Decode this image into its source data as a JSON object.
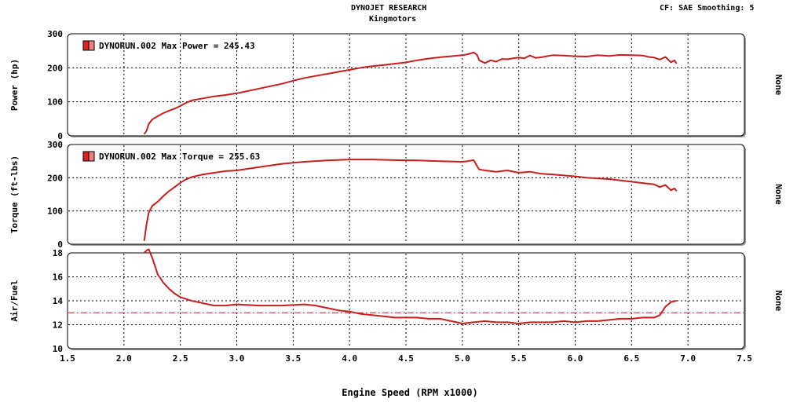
{
  "header": {
    "title": "DYNOJET RESEARCH",
    "subtitle": "Kingmotors",
    "info": "CF: SAE  Smoothing: 5"
  },
  "chart_data": {
    "type": "line",
    "xlabel": "Engine Speed (RPM x1000)",
    "xlim": [
      1.5,
      7.5
    ],
    "xticks": [
      "1.5",
      "2.0",
      "2.5",
      "3.0",
      "3.5",
      "4.0",
      "4.5",
      "5.0",
      "5.5",
      "6.0",
      "6.5",
      "7.0",
      "7.5"
    ],
    "grid": true,
    "line_color": "#c81e1e",
    "panels": [
      {
        "ylabel": "Power (hp)",
        "ylim": [
          0,
          300
        ],
        "yticks": [
          "0",
          "100",
          "200",
          "300"
        ],
        "side_label": "None",
        "legend": "DYNORUN.002 Max Power = 245.43",
        "x": [
          2.18,
          2.2,
          2.22,
          2.25,
          2.3,
          2.35,
          2.4,
          2.45,
          2.5,
          2.55,
          2.6,
          2.7,
          2.8,
          2.9,
          3.0,
          3.1,
          3.2,
          3.3,
          3.4,
          3.5,
          3.6,
          3.7,
          3.8,
          3.9,
          4.0,
          4.1,
          4.2,
          4.3,
          4.4,
          4.5,
          4.6,
          4.7,
          4.8,
          4.9,
          5.0,
          5.05,
          5.1,
          5.13,
          5.15,
          5.2,
          5.25,
          5.3,
          5.35,
          5.4,
          5.45,
          5.5,
          5.55,
          5.6,
          5.65,
          5.7,
          5.8,
          5.9,
          6.0,
          6.1,
          6.2,
          6.3,
          6.4,
          6.5,
          6.6,
          6.65,
          6.7,
          6.75,
          6.8,
          6.85,
          6.88,
          6.9
        ],
        "y": [
          5,
          15,
          35,
          48,
          58,
          67,
          74,
          80,
          88,
          97,
          104,
          110,
          116,
          120,
          125,
          132,
          139,
          146,
          153,
          162,
          170,
          176,
          182,
          188,
          194,
          200,
          205,
          208,
          212,
          216,
          222,
          227,
          231,
          234,
          237,
          240,
          245,
          238,
          222,
          214,
          222,
          218,
          226,
          225,
          228,
          230,
          228,
          236,
          229,
          231,
          237,
          236,
          234,
          233,
          237,
          235,
          238,
          237,
          236,
          232,
          230,
          224,
          232,
          216,
          222,
          212
        ]
      },
      {
        "ylabel": "Torque (ft-lbs)",
        "ylim": [
          0,
          300
        ],
        "yticks": [
          "0",
          "100",
          "200",
          "300"
        ],
        "side_label": "None",
        "legend": "DYNORUN.002 Max Torque = 255.63",
        "x": [
          2.18,
          2.2,
          2.22,
          2.25,
          2.3,
          2.35,
          2.4,
          2.45,
          2.5,
          2.55,
          2.6,
          2.7,
          2.8,
          2.9,
          3.0,
          3.2,
          3.4,
          3.6,
          3.8,
          4.0,
          4.2,
          4.4,
          4.6,
          4.8,
          5.0,
          5.05,
          5.1,
          5.13,
          5.15,
          5.2,
          5.3,
          5.4,
          5.5,
          5.6,
          5.7,
          5.8,
          5.9,
          6.0,
          6.1,
          6.2,
          6.3,
          6.4,
          6.5,
          6.6,
          6.7,
          6.75,
          6.8,
          6.85,
          6.88,
          6.9
        ],
        "y": [
          10,
          60,
          95,
          115,
          128,
          145,
          160,
          172,
          185,
          195,
          202,
          210,
          215,
          220,
          222,
          232,
          242,
          248,
          252,
          255,
          255,
          253,
          252,
          250,
          248,
          250,
          253,
          235,
          225,
          222,
          218,
          222,
          215,
          218,
          212,
          210,
          207,
          204,
          200,
          198,
          196,
          192,
          188,
          184,
          180,
          172,
          178,
          162,
          168,
          160
        ]
      },
      {
        "ylabel": "Air/Fuel",
        "ylim": [
          10,
          18
        ],
        "yticks": [
          "10",
          "12",
          "14",
          "16",
          "18"
        ],
        "side_label": "None",
        "reference_line": 13.0,
        "x": [
          2.18,
          2.2,
          2.22,
          2.25,
          2.3,
          2.35,
          2.4,
          2.45,
          2.5,
          2.6,
          2.7,
          2.8,
          2.9,
          3.0,
          3.2,
          3.4,
          3.6,
          3.7,
          3.8,
          3.9,
          4.0,
          4.1,
          4.2,
          4.3,
          4.4,
          4.5,
          4.6,
          4.7,
          4.8,
          4.9,
          5.0,
          5.1,
          5.2,
          5.3,
          5.4,
          5.5,
          5.6,
          5.7,
          5.8,
          5.9,
          6.0,
          6.1,
          6.2,
          6.3,
          6.4,
          6.5,
          6.6,
          6.7,
          6.75,
          6.8,
          6.85,
          6.9
        ],
        "y": [
          18,
          18.2,
          18.3,
          17.6,
          16.2,
          15.5,
          15.0,
          14.6,
          14.3,
          14.0,
          13.8,
          13.6,
          13.6,
          13.7,
          13.6,
          13.6,
          13.7,
          13.6,
          13.4,
          13.2,
          13.1,
          12.9,
          12.8,
          12.7,
          12.6,
          12.6,
          12.6,
          12.5,
          12.5,
          12.3,
          12.1,
          12.2,
          12.3,
          12.2,
          12.2,
          12.1,
          12.2,
          12.2,
          12.2,
          12.3,
          12.2,
          12.3,
          12.3,
          12.4,
          12.5,
          12.5,
          12.6,
          12.6,
          12.8,
          13.5,
          13.9,
          14.0
        ]
      }
    ]
  }
}
